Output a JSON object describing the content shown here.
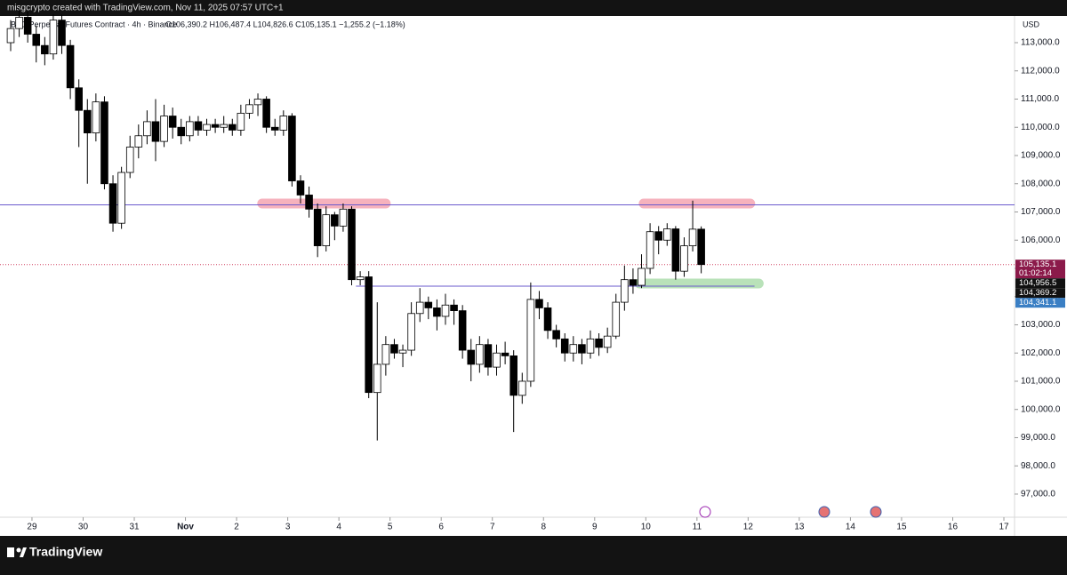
{
  "header": {
    "credit": "misgcrypto created with TradingView.com, Nov 11, 2025 07:57 UTC+1",
    "symbol": "BTC Perpetual Futures Contract · 4h · Binance",
    "ohlc": "O106,390.2 H106,487.4 L104,826.6 C105,135.1 −1,255.2 (−1.18%)"
  },
  "footer": {
    "brand": "TradingView"
  },
  "chart_data": {
    "type": "candlestick",
    "currency": "USD",
    "up_color": "#ffffff",
    "down_color": "#000000",
    "x": [
      -10,
      -6,
      -2,
      2,
      6,
      10,
      14,
      18,
      22,
      26,
      30,
      34,
      38,
      42,
      46,
      50,
      54,
      58,
      62,
      66,
      70,
      74,
      78,
      82,
      86,
      90,
      94,
      98,
      102,
      106,
      110,
      114,
      118,
      122,
      126,
      130,
      134,
      138,
      142,
      146,
      150,
      154,
      158,
      162,
      166,
      170,
      174,
      178,
      182,
      186,
      190,
      194,
      198,
      202,
      206,
      210,
      214,
      218,
      222,
      226,
      230,
      234,
      238,
      242,
      246,
      250,
      254,
      258,
      262,
      266,
      270,
      274,
      278,
      282,
      286,
      290,
      294,
      298,
      302,
      306,
      310,
      314
    ],
    "open": [
      113000,
      113500,
      113900,
      113300,
      112900,
      112600,
      113800,
      112900,
      111400,
      110600,
      109800,
      110900,
      108000,
      106600,
      108400,
      109300,
      109700,
      110200,
      109500,
      110400,
      110000,
      109700,
      110200,
      109900,
      110100,
      110000,
      110100,
      109900,
      110500,
      110800,
      111000,
      110000,
      109900,
      110400,
      108100,
      107600,
      107100,
      105800,
      106900,
      106500,
      107100,
      104600,
      104700,
      100600,
      101600,
      102300,
      102000,
      102100,
      103400,
      103800,
      103600,
      103300,
      103700,
      103500,
      102100,
      101600,
      102300,
      101500,
      102000,
      101900,
      100500,
      101000,
      103900,
      103600,
      102800,
      102500,
      102000,
      102300,
      102000,
      102500,
      102200,
      102600,
      103800,
      104600,
      104400,
      105000,
      106300,
      106000,
      106400,
      104900,
      105800,
      106390.2
    ],
    "high": [
      113800,
      114200,
      114100,
      113600,
      113200,
      114000,
      114000,
      113100,
      111700,
      111000,
      111200,
      111100,
      108300,
      108600,
      109700,
      110100,
      110600,
      111000,
      110800,
      110700,
      110300,
      110400,
      110400,
      110300,
      110300,
      110400,
      110300,
      110800,
      111000,
      111200,
      111100,
      110300,
      110600,
      110500,
      108300,
      107900,
      107300,
      107200,
      107000,
      107300,
      107200,
      104900,
      104900,
      103800,
      102600,
      102500,
      102300,
      103800,
      104300,
      104000,
      103900,
      104100,
      103900,
      103700,
      102500,
      102600,
      102500,
      102300,
      102400,
      102100,
      101300,
      104500,
      104200,
      103800,
      103000,
      102700,
      102600,
      102500,
      102800,
      102700,
      102900,
      104100,
      105100,
      105000,
      105500,
      106600,
      106500,
      106600,
      106500,
      106100,
      107400,
      106487.4
    ],
    "low": [
      112700,
      113200,
      113000,
      112300,
      112200,
      112400,
      112600,
      111000,
      109300,
      108000,
      109500,
      107800,
      106300,
      106400,
      108200,
      108900,
      109400,
      108800,
      109300,
      109600,
      109400,
      109500,
      109700,
      109700,
      109800,
      109800,
      109700,
      109700,
      110300,
      110400,
      109800,
      109700,
      109700,
      107900,
      107300,
      106800,
      105400,
      105600,
      106000,
      106300,
      104400,
      104400,
      100400,
      98900,
      101200,
      101800,
      101500,
      101900,
      103100,
      103200,
      102800,
      103000,
      103000,
      101800,
      101000,
      101300,
      101200,
      101200,
      101600,
      99200,
      100200,
      100800,
      103200,
      102500,
      102200,
      101700,
      101700,
      101600,
      101800,
      101900,
      102000,
      102500,
      103500,
      104100,
      104300,
      104800,
      105500,
      105800,
      104600,
      104700,
      105600,
      104826.6
    ],
    "close": [
      113500,
      113900,
      113300,
      112900,
      112600,
      113800,
      112900,
      111400,
      110600,
      109800,
      110900,
      108000,
      106600,
      108400,
      109300,
      109700,
      110200,
      109500,
      110400,
      110000,
      109700,
      110200,
      109900,
      110100,
      110000,
      110100,
      109900,
      110500,
      110800,
      111000,
      110000,
      109900,
      110400,
      108100,
      107600,
      107100,
      105800,
      106900,
      106500,
      107100,
      104600,
      104700,
      100600,
      101600,
      102300,
      102000,
      102100,
      103400,
      103800,
      103600,
      103300,
      103700,
      103500,
      102100,
      101600,
      102300,
      101500,
      102000,
      101900,
      100500,
      101000,
      103900,
      103600,
      102800,
      102500,
      102000,
      102300,
      102000,
      102500,
      102200,
      102600,
      103800,
      104600,
      104400,
      105000,
      106300,
      106000,
      106400,
      104900,
      105800,
      106390.2,
      105135.1
    ],
    "xlim": [
      -15,
      461
    ],
    "xticks": [
      {
        "value": 0,
        "label": "29"
      },
      {
        "value": 24,
        "label": "30"
      },
      {
        "value": 48,
        "label": "31"
      },
      {
        "value": 72,
        "label": "Nov"
      },
      {
        "value": 96,
        "label": "2"
      },
      {
        "value": 120,
        "label": "3"
      },
      {
        "value": 144,
        "label": "4"
      },
      {
        "value": 168,
        "label": "5"
      },
      {
        "value": 192,
        "label": "6"
      },
      {
        "value": 216,
        "label": "7"
      },
      {
        "value": 240,
        "label": "8"
      },
      {
        "value": 264,
        "label": "9"
      },
      {
        "value": 288,
        "label": "10"
      },
      {
        "value": 312,
        "label": "11"
      },
      {
        "value": 336,
        "label": "12"
      },
      {
        "value": 360,
        "label": "13"
      },
      {
        "value": 384,
        "label": "14"
      },
      {
        "value": 408,
        "label": "15"
      },
      {
        "value": 432,
        "label": "16"
      },
      {
        "value": 456,
        "label": "17"
      }
    ],
    "ylim": [
      96180,
      113945
    ],
    "yticks": [
      {
        "value": 97000,
        "label": "97,000.0"
      },
      {
        "value": 98000,
        "label": "98,000.0"
      },
      {
        "value": 99000,
        "label": "99,000.0"
      },
      {
        "value": 100000,
        "label": "100,000.0"
      },
      {
        "value": 101000,
        "label": "101,000.0"
      },
      {
        "value": 102000,
        "label": "102,000.0"
      },
      {
        "value": 103000,
        "label": "103,000.0"
      },
      {
        "value": 104000,
        "label": "104,000.0"
      },
      {
        "value": 105000,
        "label": "105,000.0"
      },
      {
        "value": 106000,
        "label": "106,000.0"
      },
      {
        "value": 107000,
        "label": "107,000.0"
      },
      {
        "value": 108000,
        "label": "108,000.0"
      },
      {
        "value": 109000,
        "label": "109,000.0"
      },
      {
        "value": 110000,
        "label": "110,000.0"
      },
      {
        "value": 111000,
        "label": "111,000.0"
      },
      {
        "value": 112000,
        "label": "112,000.0"
      },
      {
        "value": 113000,
        "label": "113,000.0"
      }
    ],
    "lines": [
      {
        "value": 107250,
        "color": "#6a5acd"
      },
      {
        "value": 105135.1,
        "color": "#d04060",
        "dashed": true
      },
      {
        "value": 104369.2,
        "color": "#6a5acd",
        "x": [
          152,
          339
        ]
      }
    ],
    "zones": [
      {
        "value": 107300,
        "x": [
          108,
          166
        ],
        "color": "#f4a0ad"
      },
      {
        "value": 107300,
        "x": [
          287,
          337
        ],
        "color": "#f4a0ad"
      },
      {
        "value": 104465,
        "x": [
          285,
          341
        ],
        "color": "#a8dca8"
      }
    ],
    "price_labels": [
      {
        "value": 105135.1,
        "label": "105,135.1",
        "color": "#8b1a4a",
        "note": "01:02:14"
      },
      {
        "value": 104956.5,
        "label": "104,956.5",
        "color": "#111111"
      },
      {
        "value": 104369.2,
        "label": "104,369.2",
        "color": "#111111"
      },
      {
        "value": 104341.1,
        "label": "104,341.1",
        "color": "#3a7fc4"
      }
    ]
  }
}
